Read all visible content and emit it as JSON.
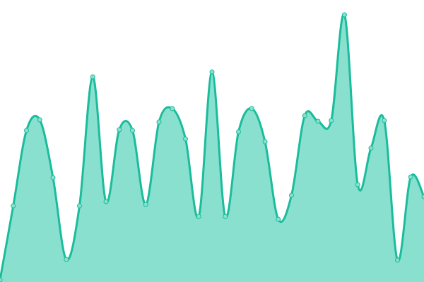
{
  "chart_data": {
    "type": "area",
    "title": "",
    "xlabel": "",
    "ylabel": "",
    "axes_visible": false,
    "grid": false,
    "legend": "none",
    "smooth": true,
    "markers": true,
    "ylim": [
      0,
      400
    ],
    "values": [
      3,
      108,
      215,
      230,
      148,
      32,
      108,
      291,
      114,
      216,
      215,
      110,
      227,
      246,
      203,
      93,
      298,
      93,
      213,
      246,
      199,
      89,
      123,
      236,
      228,
      229,
      379,
      138,
      190,
      229,
      31,
      149,
      121
    ],
    "colors": {
      "line": "#1abc9c",
      "fill": "#8ae0cf",
      "marker_fill": "#8ae0cf",
      "marker_stroke": "#1abc9c"
    }
  }
}
